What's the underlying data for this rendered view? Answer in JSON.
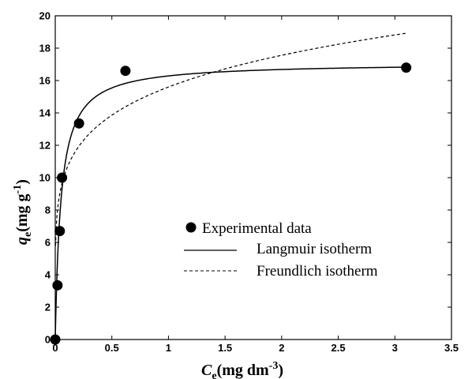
{
  "chart_data": {
    "type": "scatter",
    "xlabel": {
      "main": "C",
      "sub": "e",
      "rest": "(mg dm",
      "sup": "-3",
      "end": ")"
    },
    "ylabel": {
      "main": "q",
      "sub": "e",
      "rest": "(mg g",
      "sup": "-1",
      "end": ")"
    },
    "xlim": [
      0,
      3.5
    ],
    "ylim": [
      0,
      20
    ],
    "xticks": [
      0,
      0.5,
      1,
      1.5,
      2,
      2.5,
      3,
      3.5
    ],
    "xtick_labels": [
      "0",
      "0.5",
      "1",
      "1.5",
      "2",
      "2.5",
      "3",
      "3.5"
    ],
    "yticks": [
      0,
      2,
      4,
      6,
      8,
      10,
      12,
      14,
      16,
      18,
      20
    ],
    "ytick_labels": [
      "0",
      "2",
      "4",
      "6",
      "8",
      "10",
      "12",
      "14",
      "16",
      "18",
      "20"
    ],
    "grid": false,
    "legend_position": "center-right",
    "series": [
      {
        "name": "Experimental data",
        "kind": "points",
        "color": "#000000",
        "x": [
          0.0,
          0.02,
          0.04,
          0.06,
          0.21,
          0.62,
          3.1
        ],
        "y": [
          0.0,
          3.35,
          6.7,
          10.0,
          13.35,
          16.6,
          16.8
        ]
      },
      {
        "name": "Langmuir isotherm",
        "kind": "line",
        "dash": "solid",
        "color": "#000000",
        "model": {
          "qm": 17.1,
          "KL": 20.0
        },
        "x_range": [
          0,
          3.1
        ]
      },
      {
        "name": "Freundlich isotherm",
        "kind": "line",
        "dash": "dashed",
        "color": "#000000",
        "model": {
          "KF": 15.6,
          "n": 5.86
        },
        "x_range": [
          0.003,
          3.1
        ]
      }
    ]
  }
}
